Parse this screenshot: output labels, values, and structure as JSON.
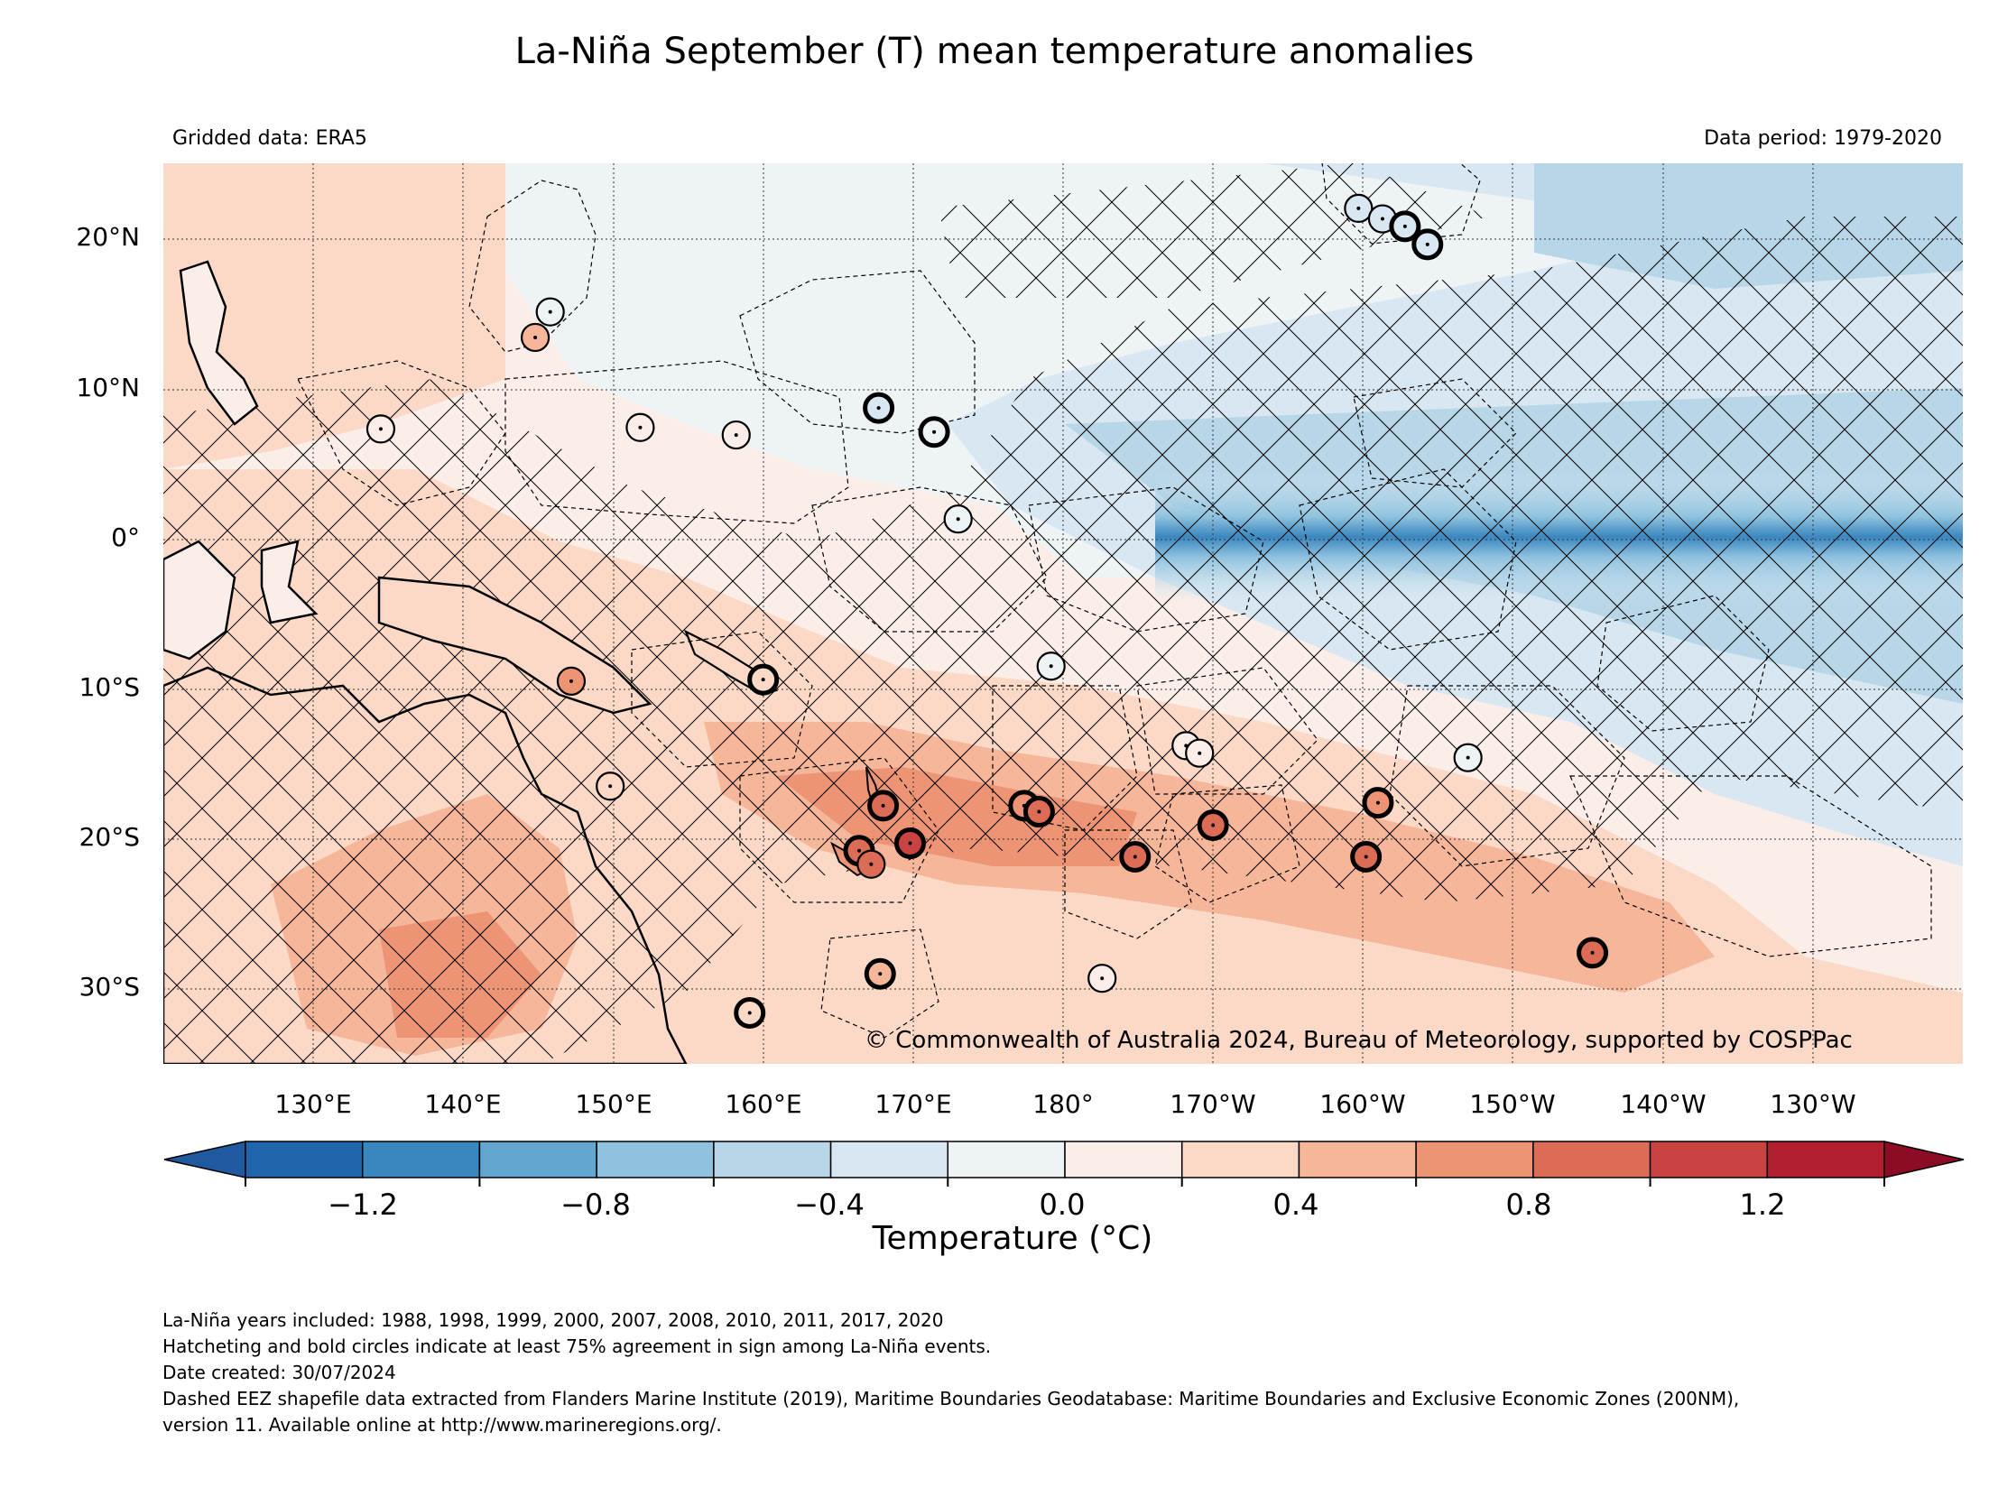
{
  "title": "La-Niña September (T) mean temperature anomalies",
  "gridded_data": "Gridded data: ERA5",
  "data_period": "Data period: 1979-2020",
  "copyright": "© Commonwealth of Australia 2024, Bureau of Meteorology, supported by COSPPac",
  "lat_labels": [
    "20°N",
    "10°N",
    "0°",
    "10°S",
    "20°S",
    "30°S"
  ],
  "lon_labels": [
    "130°E",
    "140°E",
    "150°E",
    "160°E",
    "170°E",
    "180°",
    "170°W",
    "160°W",
    "150°W",
    "140°W",
    "130°W"
  ],
  "colorbar": {
    "label": "Temperature (°C)",
    "ticks": [
      "−1.2",
      "−0.8",
      "−0.4",
      "0.0",
      "0.4",
      "0.8",
      "1.2"
    ],
    "colors": [
      "#1f5aa0",
      "#2166ac",
      "#3a87c0",
      "#63a6d0",
      "#8fc2de",
      "#b7d6e8",
      "#d8e7f1",
      "#eef3f6",
      "#fbeee8",
      "#fcd9c7",
      "#f6b69a",
      "#ec9474",
      "#dd6c57",
      "#c94440",
      "#b2202f",
      "#8c0c25"
    ]
  },
  "notes": [
    "La-Niña years included: 1988, 1998, 1999, 2000, 2007, 2008, 2010, 2011, 2017, 2020",
    "Hatcheting and bold circles indicate at least 75% agreement in sign among La-Niña events.",
    "Date created: 30/07/2024",
    "Dashed EEZ shapefile data extracted from Flanders Marine Institute (2019), Maritime Boundaries Geodatabase: Maritime Boundaries and Exclusive Economic Zones (200NM),",
    "version 11. Available online at http://www.marineregions.org/."
  ],
  "map_data": {
    "extent": {
      "lon_min": 120,
      "lon_max": 240,
      "lat_min": -35,
      "lat_max": 25
    },
    "islands": [
      {
        "lon": 145.8,
        "lat": 15.1,
        "value": 0.0,
        "bold": false
      },
      {
        "lon": 144.8,
        "lat": 13.4,
        "value": 0.5,
        "bold": false
      },
      {
        "lon": 134.5,
        "lat": 7.3,
        "value": 0.2,
        "bold": false
      },
      {
        "lon": 151.8,
        "lat": 7.4,
        "value": 0.1,
        "bold": false
      },
      {
        "lon": 158.2,
        "lat": 6.9,
        "value": 0.1,
        "bold": false
      },
      {
        "lon": 167.7,
        "lat": 8.7,
        "value": -0.2,
        "bold": true
      },
      {
        "lon": 171.4,
        "lat": 7.1,
        "value": -0.1,
        "bold": true
      },
      {
        "lon": 173.0,
        "lat": 1.3,
        "value": -0.1,
        "bold": false
      },
      {
        "lon": 160.0,
        "lat": -9.4,
        "value": 0.3,
        "bold": true
      },
      {
        "lon": 147.2,
        "lat": -9.5,
        "value": 0.7,
        "bold": false
      },
      {
        "lon": 149.8,
        "lat": -16.5,
        "value": 0.3,
        "bold": false
      },
      {
        "lon": 179.2,
        "lat": -8.5,
        "value": -0.1,
        "bold": false
      },
      {
        "lon": 188.2,
        "lat": -13.8,
        "value": 0.1,
        "bold": false
      },
      {
        "lon": 189.1,
        "lat": -14.3,
        "value": 0.1,
        "bold": false
      },
      {
        "lon": 168.0,
        "lat": -17.8,
        "value": 1.0,
        "bold": true
      },
      {
        "lon": 166.4,
        "lat": -20.8,
        "value": 0.9,
        "bold": true
      },
      {
        "lon": 167.2,
        "lat": -21.7,
        "value": 1.0,
        "bold": false
      },
      {
        "lon": 169.8,
        "lat": -20.3,
        "value": 1.1,
        "bold": true
      },
      {
        "lon": 177.4,
        "lat": -17.8,
        "value": 0.7,
        "bold": true
      },
      {
        "lon": 178.4,
        "lat": -18.2,
        "value": 0.8,
        "bold": true
      },
      {
        "lon": 184.8,
        "lat": -21.2,
        "value": 0.9,
        "bold": true
      },
      {
        "lon": 190.0,
        "lat": -19.1,
        "value": 0.8,
        "bold": true
      },
      {
        "lon": 200.2,
        "lat": -21.2,
        "value": 0.8,
        "bold": true
      },
      {
        "lon": 201.0,
        "lat": -17.6,
        "value": 0.6,
        "bold": true
      },
      {
        "lon": 207.0,
        "lat": -14.6,
        "value": -0.1,
        "bold": false
      },
      {
        "lon": 215.3,
        "lat": -27.6,
        "value": 0.9,
        "bold": true
      },
      {
        "lon": 167.8,
        "lat": -29.0,
        "value": 0.5,
        "bold": true
      },
      {
        "lon": 159.1,
        "lat": -31.6,
        "value": 0.3,
        "bold": true
      },
      {
        "lon": 182.6,
        "lat": -29.3,
        "value": 0.2,
        "bold": false
      },
      {
        "lon": 199.7,
        "lat": 22.0,
        "value": -0.3,
        "bold": false
      },
      {
        "lon": 201.3,
        "lat": 21.3,
        "value": -0.3,
        "bold": false
      },
      {
        "lon": 202.8,
        "lat": 20.8,
        "value": -0.3,
        "bold": true
      },
      {
        "lon": 204.3,
        "lat": 19.6,
        "value": -0.3,
        "bold": true
      }
    ]
  }
}
